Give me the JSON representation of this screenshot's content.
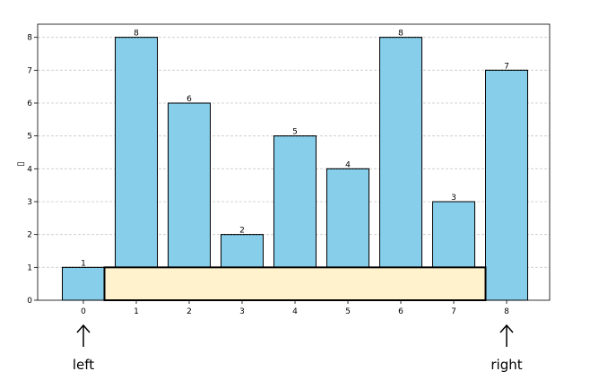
{
  "chart_data": {
    "type": "bar",
    "categories": [
      "0",
      "1",
      "2",
      "3",
      "4",
      "5",
      "6",
      "7",
      "8"
    ],
    "values": [
      1,
      8,
      6,
      2,
      5,
      4,
      8,
      3,
      7
    ],
    "title": "",
    "xlabel": "",
    "ylabel": "▯",
    "ylim": [
      0,
      8.4
    ],
    "yticks": [
      "0",
      "1",
      "2",
      "3",
      "4",
      "5",
      "6",
      "7",
      "8"
    ],
    "grid": "y-dashed",
    "bar_color": "#87ceeb",
    "water_area": {
      "from_index": 0,
      "to_index": 8,
      "height": 1,
      "color": "#fff2cc"
    },
    "pointers": [
      {
        "label": "left",
        "index": 0
      },
      {
        "label": "right",
        "index": 8
      }
    ]
  }
}
